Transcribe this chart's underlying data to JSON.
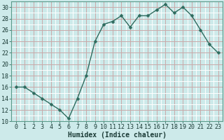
{
  "x": [
    0,
    1,
    2,
    3,
    4,
    5,
    6,
    7,
    8,
    9,
    10,
    11,
    12,
    13,
    14,
    15,
    16,
    17,
    18,
    19,
    20,
    21,
    22,
    23
  ],
  "y": [
    16,
    16,
    15,
    14,
    13,
    12,
    10.5,
    14,
    18,
    24,
    27,
    27.5,
    28.5,
    26.5,
    28.5,
    28.5,
    29.5,
    30.5,
    29,
    30,
    28.5,
    26,
    23.5,
    22
  ],
  "line_color": "#2e6b5e",
  "marker": "D",
  "marker_size": 2.5,
  "bg_color": "#cdeaea",
  "grid_major_color": "#c8a8a8",
  "grid_minor_color": "#ffffff",
  "xlabel": "Humidex (Indice chaleur)",
  "xlabel_fontsize": 7,
  "tick_fontsize": 6,
  "ylim": [
    10,
    31
  ],
  "yticks": [
    10,
    12,
    14,
    16,
    18,
    20,
    22,
    24,
    26,
    28,
    30
  ],
  "xlim": [
    -0.5,
    23.5
  ],
  "xticks": [
    0,
    1,
    2,
    3,
    4,
    5,
    6,
    7,
    8,
    9,
    10,
    11,
    12,
    13,
    14,
    15,
    16,
    17,
    18,
    19,
    20,
    21,
    22,
    23
  ],
  "spine_color": "#5a9a8a",
  "tick_color": "#2e6b5e"
}
